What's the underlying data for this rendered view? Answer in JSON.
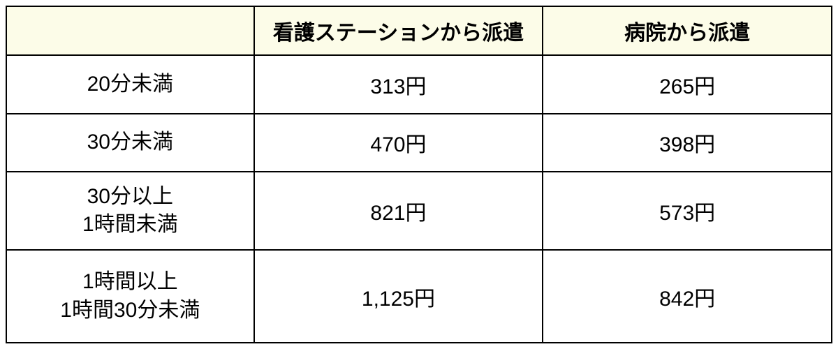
{
  "table": {
    "type": "table",
    "background_color": "#ffffff",
    "border_color": "#000000",
    "border_width": 2,
    "header_background": "#fcfce8",
    "text_color": "#000000",
    "font_size": 30,
    "header_font_weight": "bold",
    "columns": [
      {
        "key": "duration",
        "label": "",
        "width_pct": 30,
        "align": "center"
      },
      {
        "key": "station",
        "label": "看護ステーションから派遣",
        "width_pct": 35,
        "align": "center"
      },
      {
        "key": "hospital",
        "label": "病院から派遣",
        "width_pct": 35,
        "align": "center"
      }
    ],
    "rows": [
      {
        "duration_line1": "20分未満",
        "duration_line2": "",
        "station": "313円",
        "hospital": "265円"
      },
      {
        "duration_line1": "30分未満",
        "duration_line2": "",
        "station": "470円",
        "hospital": "398円"
      },
      {
        "duration_line1": "30分以上",
        "duration_line2": "1時間未満",
        "station": "821円",
        "hospital": "573円"
      },
      {
        "duration_line1": "1時間以上",
        "duration_line2": "1時間30分未満",
        "station": "1,125円",
        "hospital": "842円"
      }
    ]
  }
}
